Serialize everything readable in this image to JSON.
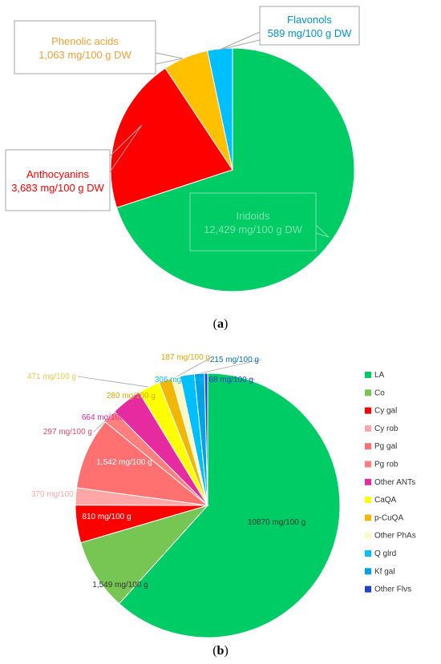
{
  "panels": {
    "a": {
      "caption": "a"
    },
    "b": {
      "caption": "b"
    }
  },
  "chart_data": [
    {
      "type": "pie",
      "title": "",
      "slices": [
        {
          "name": "Iridoids",
          "value": 12429,
          "label": "12,429 mg/100 g DW",
          "color": "#00cc66",
          "text_color": "#7fe0b0"
        },
        {
          "name": "Anthocyanins",
          "value": 3683,
          "label": "3,683 mg/100 g DW",
          "color": "#ff0000",
          "text_color": "#ff0000"
        },
        {
          "name": "Phenolic acids",
          "value": 1063,
          "label": "1,063 mg/100 g DW",
          "color": "#ffc000",
          "text_color": "#f4a132"
        },
        {
          "name": "Flavonols",
          "value": 589,
          "label": "589 mg/100 g DW",
          "color": "#00bfff",
          "text_color": "#0095d0"
        }
      ]
    },
    {
      "type": "pie",
      "title": "",
      "legend_position": "right",
      "slices": [
        {
          "name": "LA",
          "value": 10870,
          "label": "10870 mg/100 g",
          "color": "#00cc66",
          "text_color": "#333333"
        },
        {
          "name": "Co",
          "value": 1549,
          "label": "1,549 mg/100 g",
          "color": "#77c653",
          "text_color": "#333333"
        },
        {
          "name": "Cy gal",
          "value": 810,
          "label": "810 mg/100 g",
          "color": "#ff0000",
          "text_color": "#ffffff"
        },
        {
          "name": "Cy rob",
          "value": 370,
          "label": "370 mg/100 g",
          "color": "#ffa6a6",
          "text_color": "#ffa6a6"
        },
        {
          "name": "Pg gal",
          "value": 1542,
          "label": "1,542 mg/100 g",
          "color": "#ff7070",
          "text_color": "#ffffff"
        },
        {
          "name": "Pg rob",
          "value": 297,
          "label": "297 mg/100 g",
          "color": "#ff7f7f",
          "text_color": "#e14b6c"
        },
        {
          "name": "Other ANTs",
          "value": 664,
          "label": "664 mg/100 g",
          "color": "#e62ba0",
          "text_color": "#e62ba0"
        },
        {
          "name": "CaQA",
          "value": 471,
          "label": "471 mg/100 g",
          "color": "#ffff00",
          "text_color": "#f2c94c"
        },
        {
          "name": "p-CuQA",
          "value": 280,
          "label": "280 mg/100 g",
          "color": "#f2b705",
          "text_color": "#e0a800"
        },
        {
          "name": "Other PhAs",
          "value": 187,
          "label": "187 mg/100 g",
          "color": "#fff8c4",
          "text_color": "#e0a800"
        },
        {
          "name": "Q glrd",
          "value": 306,
          "label": "306 mg/100 g",
          "color": "#00bfff",
          "text_color": "#00bfff"
        },
        {
          "name": "Kf gal",
          "value": 215,
          "label": "215 mg/100 g",
          "color": "#00a2e8",
          "text_color": "#0070c0"
        },
        {
          "name": "Other Flvs",
          "value": 68,
          "label": "68 mg/100 g",
          "color": "#1f3fd4",
          "text_color": "#1f3fd4"
        }
      ]
    }
  ]
}
